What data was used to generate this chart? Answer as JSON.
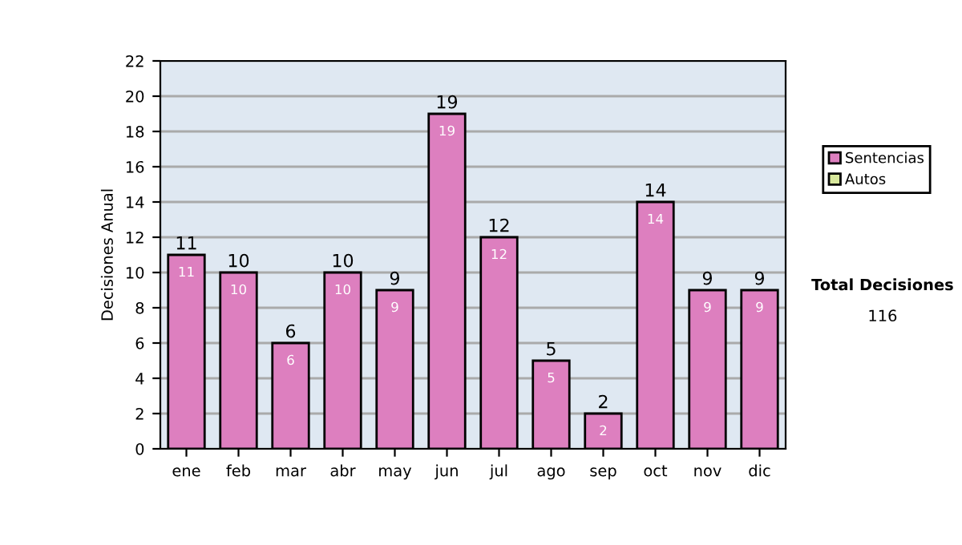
{
  "chart_data": {
    "type": "bar",
    "ylabel": "Decisiones Anual",
    "categories": [
      "ene",
      "feb",
      "mar",
      "abr",
      "may",
      "jun",
      "jul",
      "ago",
      "sep",
      "oct",
      "nov",
      "dic"
    ],
    "series": [
      {
        "name": "Sentencias",
        "color": "#dd7fbf",
        "values": [
          11,
          10,
          6,
          10,
          9,
          19,
          12,
          5,
          2,
          14,
          9,
          9
        ],
        "value_labels": [
          "11",
          "10",
          "6",
          "10",
          "9",
          "19",
          "12",
          "5",
          "2",
          "14",
          "9",
          "9"
        ]
      },
      {
        "name": "Autos",
        "color": "#d8e89c",
        "values": [
          0,
          0,
          0,
          0,
          0,
          0,
          0,
          0,
          0,
          0,
          0,
          0
        ]
      }
    ],
    "stacked": true,
    "totals": [
      "11",
      "10",
      "6",
      "10",
      "9",
      "19",
      "12",
      "5",
      "2",
      "14",
      "9",
      "9"
    ],
    "ylim": [
      0,
      22
    ],
    "yticks": [
      0,
      2,
      4,
      6,
      8,
      10,
      12,
      14,
      16,
      18,
      20,
      22
    ],
    "grid": "y",
    "legend": "right",
    "annotations": [
      "Total Decisiones",
      "116"
    ]
  }
}
